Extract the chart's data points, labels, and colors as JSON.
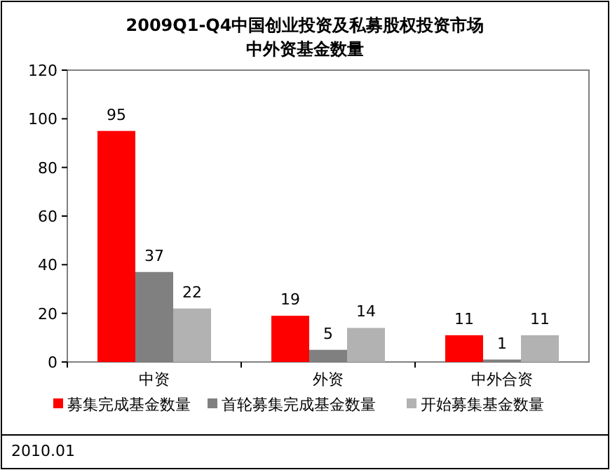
{
  "chart_data": {
    "type": "bar",
    "title": "2009Q1-Q4中国创业投资及私募股权投资市场",
    "subtitle": "中外资基金数量",
    "categories": [
      "中资",
      "外资",
      "中外合资"
    ],
    "series": [
      {
        "name": "募集完成基金数量",
        "color": "#ff0000",
        "values": [
          95,
          19,
          11
        ]
      },
      {
        "name": "首轮募集完成基金数量",
        "color": "#808080",
        "values": [
          37,
          5,
          1
        ]
      },
      {
        "name": "开始募集基金数量",
        "color": "#b2b2b2",
        "values": [
          22,
          14,
          11
        ]
      }
    ],
    "ylim": [
      0,
      120
    ],
    "yticks": [
      0,
      20,
      40,
      60,
      80,
      100,
      120
    ],
    "data_labels": true,
    "legend": "bottom",
    "annotations": [
      "2010.01"
    ]
  }
}
